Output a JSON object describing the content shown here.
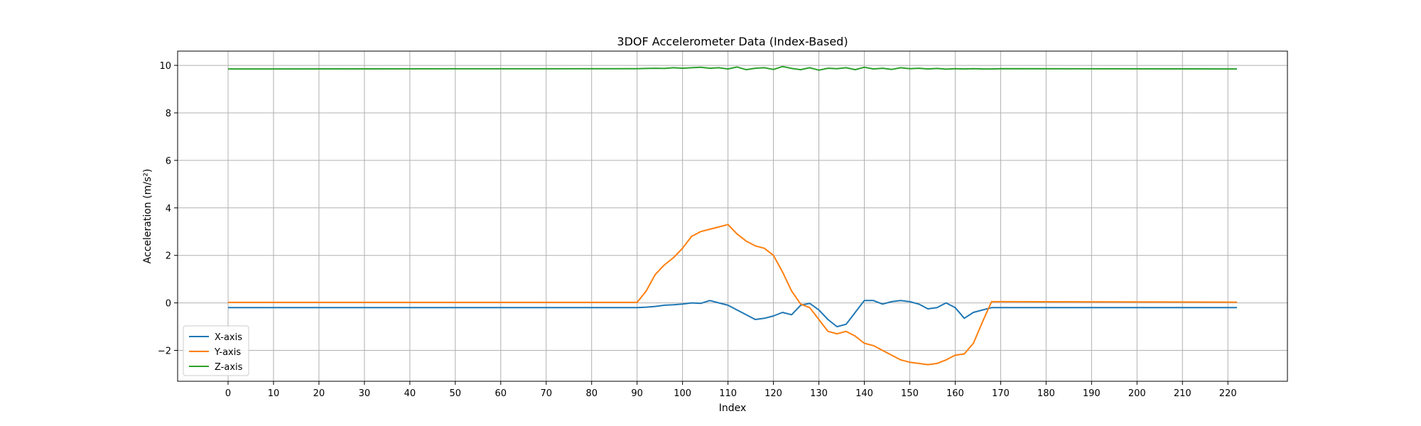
{
  "chart_data": {
    "type": "line",
    "title": "3DOF Accelerometer Data (Index-Based)",
    "xlabel": "Index",
    "ylabel": "Acceleration (m/s²)",
    "xlim": [
      -11.1,
      233.1
    ],
    "ylim": [
      -3.3,
      10.6
    ],
    "xticks": [
      0,
      10,
      20,
      30,
      40,
      50,
      60,
      70,
      80,
      90,
      100,
      110,
      120,
      130,
      140,
      150,
      160,
      170,
      180,
      190,
      200,
      210,
      220
    ],
    "yticks": [
      -2,
      0,
      2,
      4,
      6,
      8,
      10
    ],
    "grid": true,
    "legend_position": "lower-left",
    "x": [
      0,
      90,
      92,
      94,
      96,
      98,
      100,
      102,
      104,
      106,
      108,
      110,
      112,
      114,
      116,
      118,
      120,
      122,
      124,
      126,
      128,
      130,
      132,
      134,
      136,
      138,
      140,
      142,
      144,
      146,
      148,
      150,
      152,
      154,
      156,
      158,
      160,
      162,
      164,
      166,
      168,
      170,
      222
    ],
    "series": [
      {
        "name": "X-axis",
        "color": "#1f77b4",
        "values": [
          -0.2,
          -0.2,
          -0.18,
          -0.15,
          -0.1,
          -0.08,
          -0.05,
          0.0,
          -0.02,
          0.1,
          0.0,
          -0.1,
          -0.3,
          -0.5,
          -0.7,
          -0.65,
          -0.55,
          -0.4,
          -0.5,
          -0.1,
          -0.02,
          -0.3,
          -0.7,
          -1.0,
          -0.9,
          -0.4,
          0.1,
          0.1,
          -0.05,
          0.05,
          0.1,
          0.05,
          -0.05,
          -0.25,
          -0.2,
          0.0,
          -0.2,
          -0.65,
          -0.4,
          -0.3,
          -0.2,
          -0.2,
          -0.2
        ]
      },
      {
        "name": "Y-axis",
        "color": "#ff7f0e",
        "values": [
          0.02,
          0.02,
          0.5,
          1.2,
          1.6,
          1.9,
          2.3,
          2.8,
          3.0,
          3.1,
          3.2,
          3.3,
          2.9,
          2.6,
          2.4,
          2.3,
          2.0,
          1.3,
          0.5,
          -0.05,
          -0.2,
          -0.7,
          -1.2,
          -1.3,
          -1.2,
          -1.4,
          -1.7,
          -1.8,
          -2.0,
          -2.2,
          -2.4,
          -2.5,
          -2.55,
          -2.6,
          -2.55,
          -2.4,
          -2.2,
          -2.15,
          -1.7,
          -0.8,
          0.05,
          0.05,
          0.03
        ]
      },
      {
        "name": "Z-axis",
        "color": "#2ca02c",
        "values": [
          9.85,
          9.86,
          9.87,
          9.88,
          9.87,
          9.9,
          9.88,
          9.9,
          9.92,
          9.88,
          9.9,
          9.85,
          9.93,
          9.82,
          9.88,
          9.9,
          9.83,
          9.95,
          9.87,
          9.82,
          9.9,
          9.8,
          9.88,
          9.86,
          9.9,
          9.82,
          9.92,
          9.85,
          9.88,
          9.83,
          9.9,
          9.86,
          9.88,
          9.85,
          9.87,
          9.84,
          9.86,
          9.85,
          9.86,
          9.85,
          9.85,
          9.86,
          9.85
        ]
      }
    ]
  }
}
